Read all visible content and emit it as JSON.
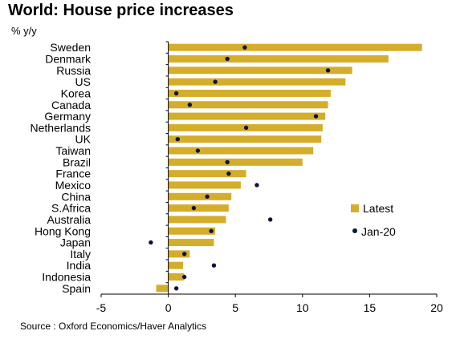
{
  "title": "World: House price increases",
  "units": "% y/y",
  "source": "Source : Oxford Economics/Haver Analytics",
  "colors": {
    "bar": "#d4ad2a",
    "marker": "#0b1440",
    "axis": "#000000"
  },
  "chart_data": {
    "type": "bar",
    "orientation": "horizontal",
    "title": "World: House price increases",
    "ylabel": "% y/y",
    "xlim": [
      -5,
      20
    ],
    "xticks": [
      -5,
      0,
      5,
      10,
      15,
      20
    ],
    "grid": false,
    "legend_position": "right",
    "categories": [
      "Sweden",
      "Denmark",
      "Russia",
      "US",
      "Korea",
      "Canada",
      "Germany",
      "Netherlands",
      "UK",
      "Taiwan",
      "Brazil",
      "France",
      "Mexico",
      "China",
      "S.Africa",
      "Australia",
      "Hong Kong",
      "Japan",
      "Italy",
      "India",
      "Indonesia",
      "Spain"
    ],
    "series": [
      {
        "name": "Latest",
        "kind": "bar",
        "values": [
          18.9,
          16.4,
          13.7,
          13.2,
          12.1,
          11.9,
          11.7,
          11.5,
          11.4,
          10.8,
          10.0,
          5.8,
          5.4,
          4.7,
          4.5,
          4.3,
          3.5,
          3.4,
          1.6,
          1.1,
          1.2,
          -0.9
        ]
      },
      {
        "name": "Jan-20",
        "kind": "marker",
        "values": [
          5.7,
          4.4,
          11.9,
          3.5,
          0.6,
          1.6,
          11.0,
          5.8,
          0.7,
          2.2,
          4.4,
          4.5,
          6.6,
          2.9,
          1.9,
          7.6,
          3.2,
          -1.3,
          1.2,
          3.4,
          1.2,
          0.6
        ]
      }
    ]
  }
}
